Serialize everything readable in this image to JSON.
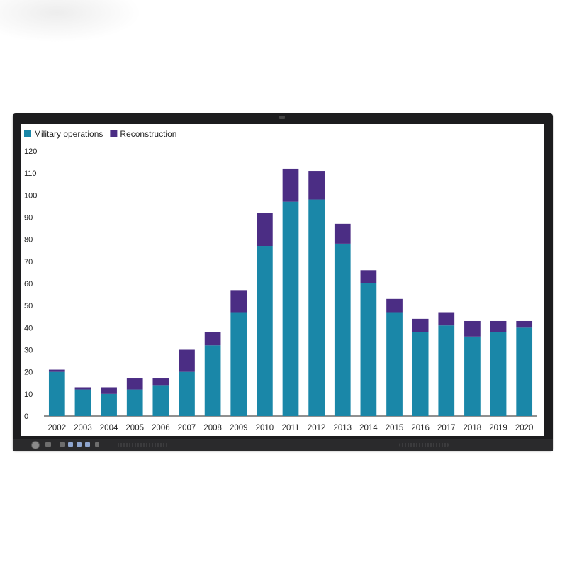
{
  "chart_data": {
    "type": "bar",
    "stacked": true,
    "categories": [
      "2002",
      "2003",
      "2004",
      "2005",
      "2006",
      "2007",
      "2008",
      "2009",
      "2010",
      "2011",
      "2012",
      "2013",
      "2014",
      "2015",
      "2016",
      "2017",
      "2018",
      "2019",
      "2020"
    ],
    "series": [
      {
        "name": "Military operations",
        "color": "#1a87a8",
        "values": [
          20,
          12,
          10,
          12,
          14,
          20,
          32,
          47,
          77,
          97,
          98,
          78,
          60,
          47,
          38,
          41,
          36,
          38,
          40
        ]
      },
      {
        "name": "Reconstruction",
        "color": "#4b2d84",
        "values": [
          1,
          1,
          3,
          5,
          3,
          10,
          6,
          10,
          15,
          15,
          13,
          9,
          6,
          6,
          6,
          6,
          7,
          5,
          3
        ]
      }
    ],
    "yticks": [
      "0",
      "10",
      "20",
      "30",
      "40",
      "50",
      "60",
      "70",
      "80",
      "90",
      "100",
      "110",
      "120"
    ],
    "ylim": [
      0,
      120
    ],
    "legend_position": "top-left",
    "grid": false
  },
  "device": {
    "icons": [
      "power-knob-icon",
      "hdmi-port-icon",
      "usb-port-icon",
      "speaker-grille-icon",
      "webcam-icon"
    ]
  }
}
